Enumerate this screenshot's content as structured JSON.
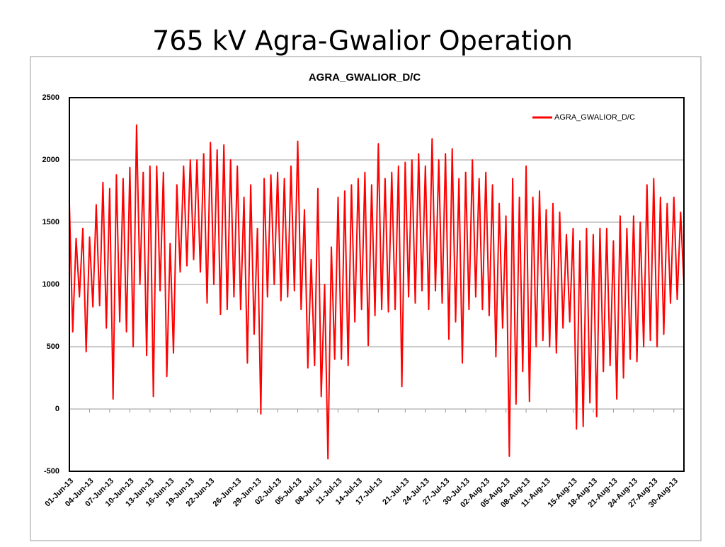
{
  "page_title": "765 kV Agra-Gwalior Operation",
  "chart_data": {
    "type": "line",
    "title": "AGRA_GWALIOR_D/C",
    "x": [
      0,
      0.5,
      1,
      1.5,
      2,
      2.5,
      3,
      3.5,
      4,
      4.5,
      5,
      5.5,
      6,
      6.5,
      7,
      7.5,
      8,
      8.5,
      9,
      9.5,
      10,
      10.5,
      11,
      11.5,
      12,
      12.5,
      13,
      13.5,
      14,
      14.5,
      15,
      15.5,
      16,
      16.5,
      17,
      17.5,
      18,
      18.5,
      19,
      19.5,
      20,
      20.5,
      21,
      21.5,
      22,
      22.5,
      23,
      23.5,
      24,
      24.5,
      25,
      25.5,
      26,
      26.5,
      27,
      27.5,
      28,
      28.5,
      29,
      29.5,
      30,
      30.5,
      31,
      31.5,
      32,
      32.5,
      33,
      33.5,
      34,
      34.5,
      35,
      35.5,
      36,
      36.5,
      37,
      37.5,
      38,
      38.5,
      39,
      39.5,
      40,
      40.5,
      41,
      41.5,
      42,
      42.5,
      43,
      43.5,
      44,
      44.5,
      45,
      45.5,
      46,
      46.5,
      47,
      47.5,
      48,
      48.5,
      49,
      49.5,
      50,
      50.5,
      51,
      51.5,
      52,
      52.5,
      53,
      53.5,
      54,
      54.5,
      55,
      55.5,
      56,
      56.5,
      57,
      57.5,
      58,
      58.5,
      59,
      59.5,
      60,
      60.5,
      61,
      61.5,
      62,
      62.5,
      63,
      63.5,
      64,
      64.5,
      65,
      65.5,
      66,
      66.5,
      67,
      67.5,
      68,
      68.5,
      69,
      69.5,
      70,
      70.5,
      71,
      71.5,
      72,
      72.5,
      73,
      73.5,
      74,
      74.5,
      75,
      75.5,
      76,
      76.5,
      77,
      77.5,
      78,
      78.5,
      79,
      79.5,
      80,
      80.5,
      81,
      81.5,
      82,
      82.5,
      83,
      83.5,
      84,
      84.5,
      85,
      85.5,
      86,
      86.5,
      87,
      87.5,
      88,
      88.5,
      89,
      89.5,
      90,
      90.5,
      91,
      91.5
    ],
    "series": [
      {
        "name": "AGRA_GWALIOR_D/C",
        "color": "#ff0000",
        "values": [
          1650,
          620,
          1370,
          900,
          1450,
          460,
          1380,
          820,
          1640,
          830,
          1820,
          650,
          1770,
          80,
          1880,
          700,
          1850,
          620,
          1940,
          500,
          2280,
          1000,
          1900,
          430,
          1950,
          100,
          1950,
          950,
          1900,
          260,
          1330,
          450,
          1800,
          1100,
          1950,
          1150,
          2000,
          1200,
          2000,
          1100,
          2050,
          850,
          2140,
          1000,
          2080,
          760,
          2120,
          800,
          2000,
          900,
          1950,
          800,
          1700,
          370,
          1800,
          600,
          1450,
          -40,
          1850,
          900,
          1880,
          1000,
          1900,
          870,
          1850,
          900,
          1950,
          950,
          2150,
          800,
          1600,
          330,
          1200,
          350,
          1770,
          100,
          1000,
          -400,
          1300,
          400,
          1700,
          400,
          1750,
          350,
          1800,
          700,
          1850,
          800,
          1900,
          510,
          1800,
          750,
          2130,
          800,
          1850,
          780,
          1900,
          800,
          1950,
          180,
          1980,
          900,
          2000,
          850,
          2050,
          950,
          1950,
          800,
          2170,
          950,
          2000,
          850,
          2050,
          560,
          2090,
          700,
          1850,
          370,
          1900,
          800,
          2000,
          900,
          1850,
          800,
          1900,
          750,
          1800,
          420,
          1650,
          650,
          1550,
          -380,
          1850,
          40,
          1700,
          300,
          1950,
          60,
          1700,
          500,
          1750,
          550,
          1600,
          500,
          1650,
          450,
          1580,
          650,
          1400,
          700,
          1450,
          -160,
          1350,
          -140,
          1450,
          50,
          1400,
          -60,
          1450,
          300,
          1450,
          350,
          1350,
          80,
          1550,
          250,
          1450,
          400,
          1550,
          380,
          1500,
          500,
          1800,
          550,
          1850,
          500,
          1700,
          600,
          1650,
          850,
          1700,
          880,
          1580,
          1000
        ]
      }
    ],
    "xlim": [
      0,
      91.5
    ],
    "xticks": [
      {
        "value": 0,
        "label": "01-Jun-13"
      },
      {
        "value": 3,
        "label": "04-Jun-13"
      },
      {
        "value": 6,
        "label": "07-Jun-13"
      },
      {
        "value": 9,
        "label": "10-Jun-13"
      },
      {
        "value": 12,
        "label": "13-Jun-13"
      },
      {
        "value": 15,
        "label": "16-Jun-13"
      },
      {
        "value": 18,
        "label": "19-Jun-13"
      },
      {
        "value": 21,
        "label": "22-Jun-13"
      },
      {
        "value": 25,
        "label": "26-Jun-13"
      },
      {
        "value": 28,
        "label": "29-Jun-13"
      },
      {
        "value": 31,
        "label": "02-Jul-13"
      },
      {
        "value": 34,
        "label": "05-Jul-13"
      },
      {
        "value": 37,
        "label": "08-Jul-13"
      },
      {
        "value": 40,
        "label": "11-Jul-13"
      },
      {
        "value": 43,
        "label": "14-Jul-13"
      },
      {
        "value": 46,
        "label": "17-Jul-13"
      },
      {
        "value": 50,
        "label": "21-Jul-13"
      },
      {
        "value": 53,
        "label": "24-Jul-13"
      },
      {
        "value": 56,
        "label": "27-Jul-13"
      },
      {
        "value": 59,
        "label": "30-Jul-13"
      },
      {
        "value": 62,
        "label": "02-Aug-13"
      },
      {
        "value": 65,
        "label": "05-Aug-13"
      },
      {
        "value": 68,
        "label": "08-Aug-13"
      },
      {
        "value": 71,
        "label": "11-Aug-13"
      },
      {
        "value": 75,
        "label": "15-Aug-13"
      },
      {
        "value": 78,
        "label": "18-Aug-13"
      },
      {
        "value": 81,
        "label": "21-Aug-13"
      },
      {
        "value": 84,
        "label": "24-Aug-13"
      },
      {
        "value": 87,
        "label": "27-Aug-13"
      },
      {
        "value": 90,
        "label": "30-Aug-13"
      }
    ],
    "ylim": [
      -500,
      2500
    ],
    "yticks": [
      -500,
      0,
      500,
      1000,
      1500,
      2000,
      2500
    ],
    "grid": true,
    "legend": "upper right"
  }
}
